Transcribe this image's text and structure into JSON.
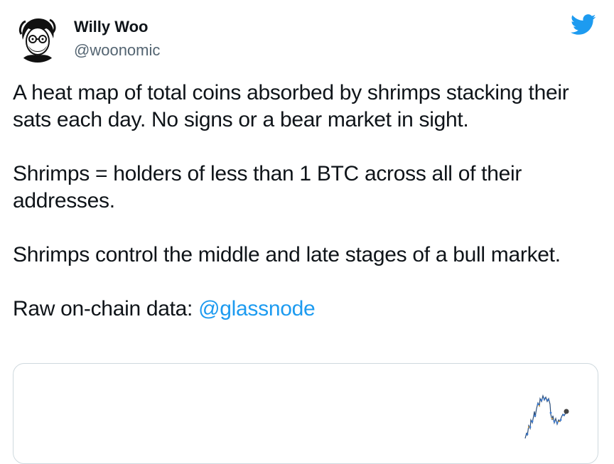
{
  "tweet": {
    "author_name": "Willy Woo",
    "author_handle": "@woonomic",
    "platform_icon": "twitter-bird-icon",
    "brand_color": "#1d9bf0",
    "paragraphs": [
      "A heat map of total coins absorbed by shrimps stacking their sats each day. No signs or a bear market in sight.",
      "Shrimps = holders of less than 1 BTC across all of their addresses.",
      "Shrimps control the middle and late stages of a bull market."
    ],
    "source_prefix": "Raw on-chain data: ",
    "source_mention": "@glassnode"
  },
  "media": {
    "type": "chart-image-preview"
  }
}
